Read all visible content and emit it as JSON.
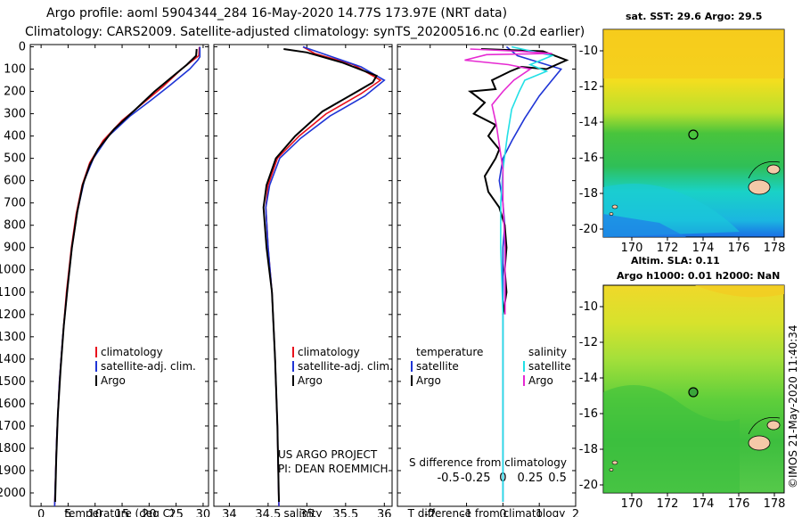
{
  "header": {
    "title_line1": "Argo profile: aoml 5904344_284 16-May-2020 14.77S 173.97E (NRT data)",
    "title_line2": "Climatology: CARS2009. Satellite-adjusted climatology: synTS_20200516.nc (0.2d earlier)"
  },
  "colors": {
    "climatology": "#e8101c",
    "satellite": "#1f35d6",
    "argo": "#000000",
    "sat_salinity": "#22e0e6",
    "argo_salinity": "#e62ad2"
  },
  "depth_axis": {
    "ticks": [
      0,
      100,
      200,
      300,
      400,
      500,
      600,
      700,
      800,
      900,
      1000,
      1100,
      1200,
      1300,
      1400,
      1500,
      1600,
      1700,
      1800,
      1900,
      2000
    ]
  },
  "chart_data": [
    {
      "type": "line",
      "name": "temperature",
      "xlabel": "temperature (deg C)",
      "xlim": [
        -2,
        31
      ],
      "ylim": [
        2060,
        -10
      ],
      "xticks": [
        0,
        5,
        10,
        15,
        20,
        25,
        30
      ],
      "legend": [
        "climatology",
        "satellite-adj. clim.",
        "Argo"
      ],
      "series": [
        {
          "name": "climatology",
          "color_key": "climatology",
          "points": [
            [
              29.3,
              0
            ],
            [
              29.2,
              40
            ],
            [
              26,
              100
            ],
            [
              22.5,
              180
            ],
            [
              19,
              250
            ],
            [
              15,
              330
            ],
            [
              11.5,
              420
            ],
            [
              9,
              520
            ],
            [
              7.6,
              620
            ],
            [
              6.5,
              750
            ],
            [
              5.6,
              900
            ],
            [
              4.7,
              1100
            ],
            [
              4,
              1300
            ],
            [
              3.4,
              1500
            ],
            [
              2.9,
              1750
            ],
            [
              2.5,
              2060
            ]
          ]
        },
        {
          "name": "satellite-adj. clim.",
          "color_key": "satellite",
          "points": [
            [
              29.4,
              0
            ],
            [
              29.4,
              45
            ],
            [
              29,
              60
            ],
            [
              27.5,
              100
            ],
            [
              24,
              170
            ],
            [
              20.3,
              240
            ],
            [
              16.5,
              310
            ],
            [
              12.5,
              400
            ],
            [
              9.7,
              500
            ],
            [
              8,
              600
            ],
            [
              6.7,
              740
            ],
            [
              5.7,
              900
            ],
            [
              4.8,
              1100
            ],
            [
              4,
              1300
            ],
            [
              3.4,
              1500
            ],
            [
              2.9,
              1750
            ],
            [
              2.5,
              2060
            ]
          ]
        },
        {
          "name": "Argo",
          "color_key": "argo",
          "points": [
            [
              28.8,
              10
            ],
            [
              28.7,
              40
            ],
            [
              27,
              80
            ],
            [
              24,
              140
            ],
            [
              21,
              200
            ],
            [
              17.5,
              280
            ],
            [
              13.5,
              370
            ],
            [
              10.5,
              460
            ],
            [
              9,
              530
            ],
            [
              7.7,
              620
            ],
            [
              6.7,
              740
            ],
            [
              5.7,
              900
            ],
            [
              4.9,
              1080
            ],
            [
              4.2,
              1250
            ],
            [
              3.6,
              1450
            ],
            [
              3.1,
              1650
            ],
            [
              2.8,
              1850
            ],
            [
              2.6,
              2040
            ]
          ]
        }
      ]
    },
    {
      "type": "line",
      "name": "salinity",
      "xlabel": "salinity",
      "xlim": [
        33.8,
        36.1
      ],
      "ylim": [
        2060,
        -10
      ],
      "xticks": [
        34,
        34.5,
        35,
        35.5,
        36
      ],
      "legend": [
        "climatology",
        "satellite-adj. clim.",
        "Argo"
      ],
      "annotation": [
        "US ARGO PROJECT",
        "PI: DEAN ROEMMICH"
      ],
      "series": [
        {
          "name": "climatology",
          "color_key": "climatology",
          "points": [
            [
              34.95,
              0
            ],
            [
              35.1,
              30
            ],
            [
              35.6,
              80
            ],
            [
              35.95,
              150
            ],
            [
              35.7,
              210
            ],
            [
              35.25,
              300
            ],
            [
              34.9,
              400
            ],
            [
              34.62,
              500
            ],
            [
              34.5,
              620
            ],
            [
              34.47,
              720
            ],
            [
              34.5,
              900
            ],
            [
              34.55,
              1100
            ],
            [
              34.59,
              1400
            ],
            [
              34.62,
              1700
            ],
            [
              34.64,
              2060
            ]
          ]
        },
        {
          "name": "satellite-adj. clim.",
          "color_key": "satellite",
          "points": [
            [
              34.95,
              0
            ],
            [
              35.2,
              30
            ],
            [
              35.7,
              90
            ],
            [
              36.0,
              150
            ],
            [
              35.75,
              220
            ],
            [
              35.3,
              310
            ],
            [
              34.92,
              410
            ],
            [
              34.65,
              500
            ],
            [
              34.52,
              620
            ],
            [
              34.47,
              720
            ],
            [
              34.5,
              900
            ],
            [
              34.55,
              1100
            ],
            [
              34.59,
              1400
            ],
            [
              34.62,
              1700
            ],
            [
              34.64,
              2060
            ]
          ]
        },
        {
          "name": "Argo",
          "color_key": "argo",
          "points": [
            [
              34.7,
              10
            ],
            [
              35.0,
              25
            ],
            [
              35.45,
              70
            ],
            [
              35.9,
              130
            ],
            [
              35.85,
              160
            ],
            [
              35.6,
              210
            ],
            [
              35.2,
              290
            ],
            [
              34.85,
              400
            ],
            [
              34.6,
              500
            ],
            [
              34.48,
              620
            ],
            [
              34.44,
              720
            ],
            [
              34.48,
              900
            ],
            [
              34.55,
              1100
            ],
            [
              34.59,
              1400
            ],
            [
              34.62,
              1700
            ],
            [
              34.64,
              2040
            ]
          ]
        }
      ]
    },
    {
      "type": "line",
      "name": "difference",
      "xlabel": "T difference from climatology",
      "x2label": "S difference from climatology",
      "xlim": [
        -2.9,
        2.0
      ],
      "ylim": [
        2060,
        -10
      ],
      "xticks": [
        -2,
        -1,
        0,
        1,
        2
      ],
      "x2ticks": [
        -0.5,
        -0.25,
        0,
        0.25,
        0.5
      ],
      "legend_left_title": "temperature",
      "legend_right_title": "salinity",
      "legend_left": [
        "satellite",
        "Argo"
      ],
      "legend_right": [
        "satellite",
        "Argo"
      ],
      "series": [
        {
          "name": "T satellite",
          "color_key": "satellite",
          "points": [
            [
              0.1,
              0
            ],
            [
              0.4,
              40
            ],
            [
              1.6,
              100
            ],
            [
              1.3,
              160
            ],
            [
              1.0,
              220
            ],
            [
              0.6,
              320
            ],
            [
              0.25,
              420
            ],
            [
              0,
              500
            ],
            [
              -0.1,
              600
            ],
            [
              0,
              700
            ],
            [
              0.05,
              800
            ],
            [
              0,
              900
            ],
            [
              0,
              1100
            ],
            [
              0,
              1400
            ],
            [
              0,
              1700
            ],
            [
              0,
              2040
            ]
          ]
        },
        {
          "name": "T Argo",
          "color_key": "argo",
          "points": [
            [
              -0.6,
              10
            ],
            [
              1.1,
              20
            ],
            [
              1.75,
              60
            ],
            [
              1.2,
              100
            ],
            [
              0.5,
              90
            ],
            [
              0.2,
              110
            ],
            [
              -0.3,
              150
            ],
            [
              -0.2,
              190
            ],
            [
              -0.9,
              200
            ],
            [
              -0.5,
              250
            ],
            [
              -0.8,
              300
            ],
            [
              -0.2,
              350
            ],
            [
              -0.4,
              400
            ],
            [
              -0.1,
              460
            ],
            [
              -0.2,
              500
            ],
            [
              -0.5,
              580
            ],
            [
              -0.4,
              650
            ],
            [
              -0.1,
              720
            ],
            [
              0.05,
              800
            ],
            [
              0.1,
              900
            ],
            [
              0.05,
              1000
            ],
            [
              0.1,
              1100
            ],
            [
              0,
              1200
            ]
          ]
        },
        {
          "name": "S satellite",
          "color_key": "sat_salinity",
          "points": [
            [
              0.08,
              0
            ],
            [
              0.45,
              40
            ],
            [
              0.25,
              80
            ],
            [
              0.4,
              110
            ],
            [
              0.2,
              150
            ],
            [
              0.15,
              200
            ],
            [
              0.08,
              280
            ],
            [
              0.04,
              400
            ],
            [
              0,
              550
            ],
            [
              -0.02,
              700
            ],
            [
              -0.02,
              900
            ],
            [
              0,
              1200
            ],
            [
              0,
              1500
            ],
            [
              0,
              2040
            ]
          ]
        },
        {
          "name": "S Argo",
          "color_key": "argo_salinity",
          "points": [
            [
              -0.3,
              10
            ],
            [
              0.15,
              20
            ],
            [
              0.45,
              30
            ],
            [
              -0.15,
              35
            ],
            [
              -0.35,
              60
            ],
            [
              0.05,
              80
            ],
            [
              0.25,
              100
            ],
            [
              0.1,
              150
            ],
            [
              0.0,
              200
            ],
            [
              -0.1,
              260
            ],
            [
              -0.06,
              350
            ],
            [
              -0.03,
              450
            ],
            [
              0,
              550
            ],
            [
              0,
              700
            ],
            [
              0.02,
              900
            ],
            [
              0.02,
              1200
            ]
          ]
        }
      ]
    }
  ],
  "map_top": {
    "title": "sat. SST: 29.6 Argo: 29.5",
    "subtitle": "Altim. SLA: 0.11",
    "lat_ticks": [
      "-10",
      "-12",
      "-14",
      "-16",
      "-18",
      "-20"
    ],
    "lon_ticks": [
      "170",
      "172",
      "174",
      "176",
      "178"
    ]
  },
  "map_bottom": {
    "title": "Argo h1000: 0.01 h2000: NaN",
    "lat_ticks": [
      "-10",
      "-12",
      "-14",
      "-16",
      "-18",
      "-20"
    ],
    "lon_ticks": [
      "170",
      "172",
      "174",
      "176",
      "178"
    ]
  },
  "credit": "©IMOS 21-May-2020 11:40:34"
}
